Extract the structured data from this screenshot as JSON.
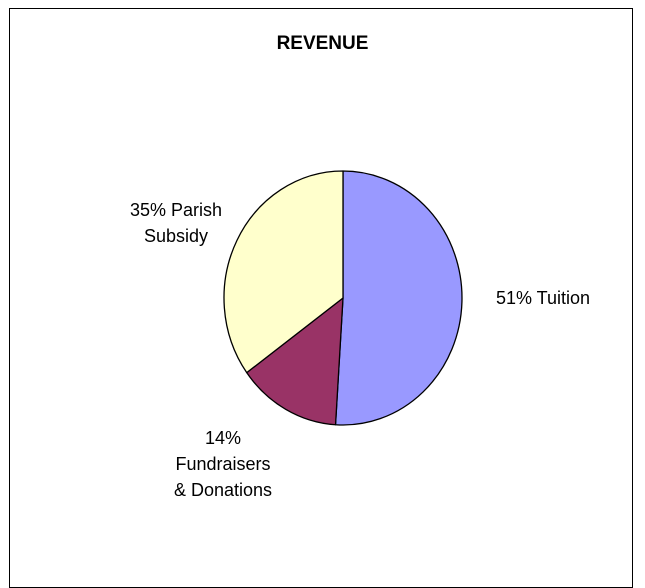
{
  "chart_data": {
    "type": "pie",
    "title": "REVENUE",
    "slices": [
      {
        "label_lines": [
          "51% Tuition"
        ],
        "percent": 51,
        "name": "Tuition",
        "color": "#9999ff"
      },
      {
        "label_lines": [
          "14%",
          "Fundraisers",
          "& Donations"
        ],
        "percent": 14,
        "name": "Fundraisers & Donations",
        "color": "#993366"
      },
      {
        "label_lines": [
          "35% Parish",
          "Subsidy"
        ],
        "percent": 35,
        "name": "Parish Subsidy",
        "color": "#ffffcc"
      }
    ]
  }
}
